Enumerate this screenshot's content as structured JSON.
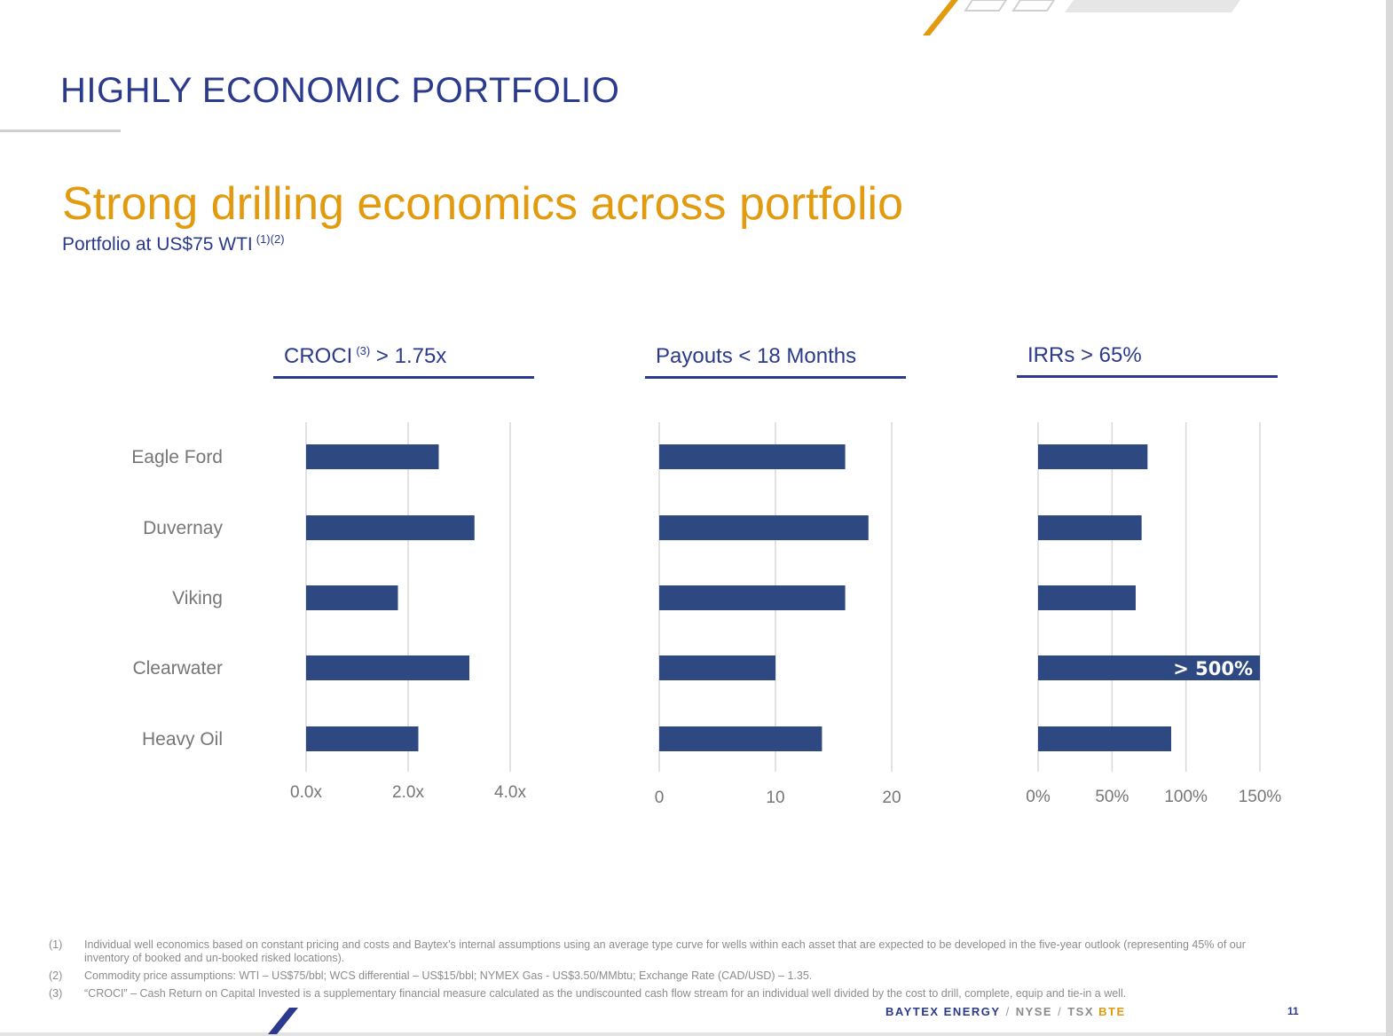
{
  "slide": {
    "title": "HIGHLY ECONOMIC PORTFOLIO",
    "headline": "Strong drilling economics across portfolio",
    "subtitle": "Portfolio at US$75 WTI",
    "subtitle_sup": "(1)(2)"
  },
  "colors": {
    "bar": "#2e4882",
    "title": "#2b3a8c",
    "accent": "#e29a0f",
    "grid": "#d9d9d9"
  },
  "chart_data": [
    {
      "type": "bar",
      "orientation": "horizontal",
      "title": "CROCI",
      "title_sup": "(3)",
      "title_suffix": "> 1.75x",
      "categories": [
        "Eagle Ford",
        "Duvernay",
        "Viking",
        "Clearwater",
        "Heavy Oil"
      ],
      "values": [
        2.6,
        3.3,
        1.8,
        3.2,
        2.2
      ],
      "xlim": [
        0,
        4
      ],
      "ticks": [
        0,
        2,
        4
      ],
      "tick_labels": [
        "0.0x",
        "2.0x",
        "4.0x"
      ],
      "grid": true
    },
    {
      "type": "bar",
      "orientation": "horizontal",
      "title": "Payouts < 18 Months",
      "categories": [
        "Eagle Ford",
        "Duvernay",
        "Viking",
        "Clearwater",
        "Heavy Oil"
      ],
      "values": [
        16,
        18,
        16,
        10,
        14
      ],
      "xlim": [
        0,
        20
      ],
      "ticks": [
        0,
        10,
        20
      ],
      "tick_labels": [
        "0",
        "10",
        "20"
      ],
      "grid": true
    },
    {
      "type": "bar",
      "orientation": "horizontal",
      "title": "IRRs > 65%",
      "categories": [
        "Eagle Ford",
        "Duvernay",
        "Viking",
        "Clearwater",
        "Heavy Oil"
      ],
      "values": [
        74,
        70,
        66,
        150,
        90
      ],
      "xlim": [
        0,
        150
      ],
      "ticks": [
        0,
        50,
        100,
        150
      ],
      "tick_labels": [
        "0%",
        "50%",
        "100%",
        "150%"
      ],
      "grid": true,
      "bar_annotations": [
        {
          "index": 3,
          "text": "> 500%"
        }
      ]
    }
  ],
  "footnotes": [
    {
      "num": "(1)",
      "text": "Individual well economics based on constant pricing and costs and Baytex’s internal assumptions using an average type curve for wells within each asset that are expected to be developed in the five-year outlook (representing 45% of our inventory of booked and un-booked risked locations)."
    },
    {
      "num": "(2)",
      "text": "Commodity price assumptions:  WTI – US$75/bbl; WCS differential – US$15/bbl; NYMEX Gas - US$3.50/MMbtu; Exchange Rate (CAD/USD) – 1.35."
    },
    {
      "num": "(3)",
      "text": "“CROCI” – Cash Return on Capital Invested is a supplementary financial measure calculated as the undiscounted cash flow stream for an individual well divided by the cost to drill, complete, equip and tie-in a well."
    }
  ],
  "footer": {
    "company": "BAYTEX ENERGY",
    "sep": "/",
    "exchange1": "NYSE",
    "exchange2": "TSX",
    "ticker": "BTE",
    "page": "11"
  }
}
